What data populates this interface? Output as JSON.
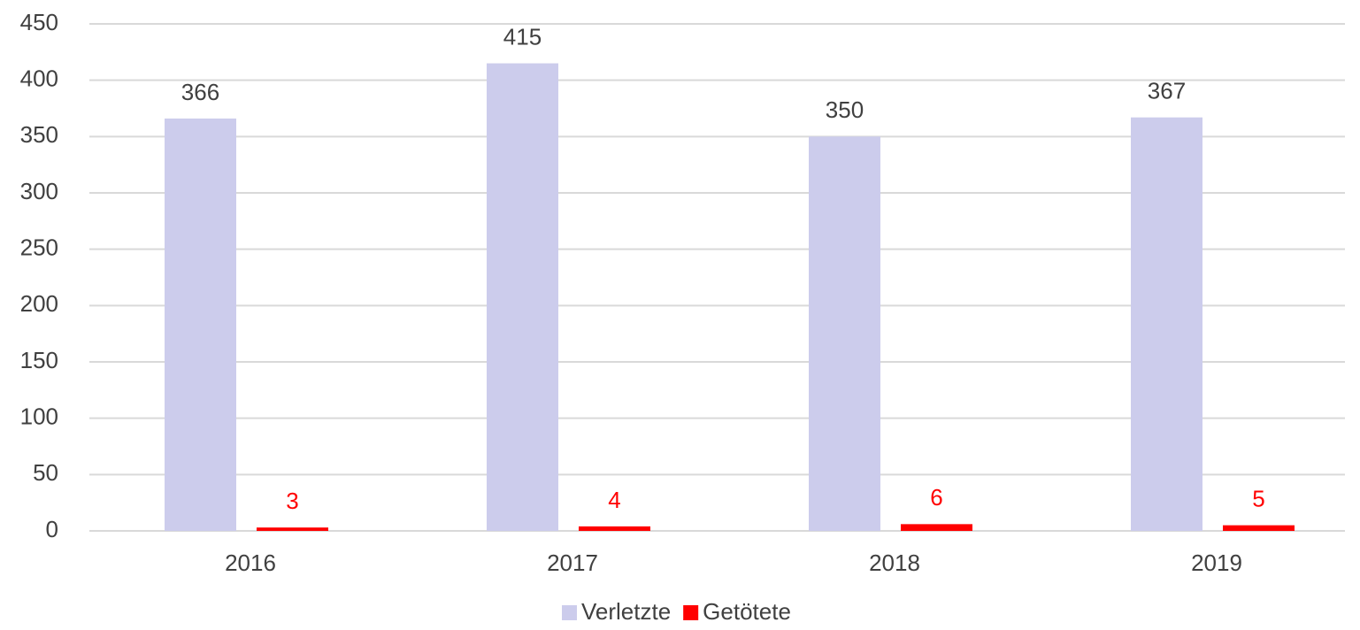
{
  "chart_data": {
    "type": "bar",
    "categories": [
      "2016",
      "2017",
      "2018",
      "2019"
    ],
    "series": [
      {
        "name": "Verletzte",
        "color": "#ccccec",
        "label_color": "#404040",
        "values": [
          366,
          415,
          350,
          367
        ]
      },
      {
        "name": "Getötete",
        "color": "#ff0000",
        "label_color": "#ff0000",
        "values": [
          3,
          4,
          6,
          5
        ]
      }
    ],
    "ylim": [
      0,
      450
    ],
    "yticks": [
      0,
      50,
      100,
      150,
      200,
      250,
      300,
      350,
      400,
      450
    ],
    "grid": true,
    "legend": "bottom"
  }
}
